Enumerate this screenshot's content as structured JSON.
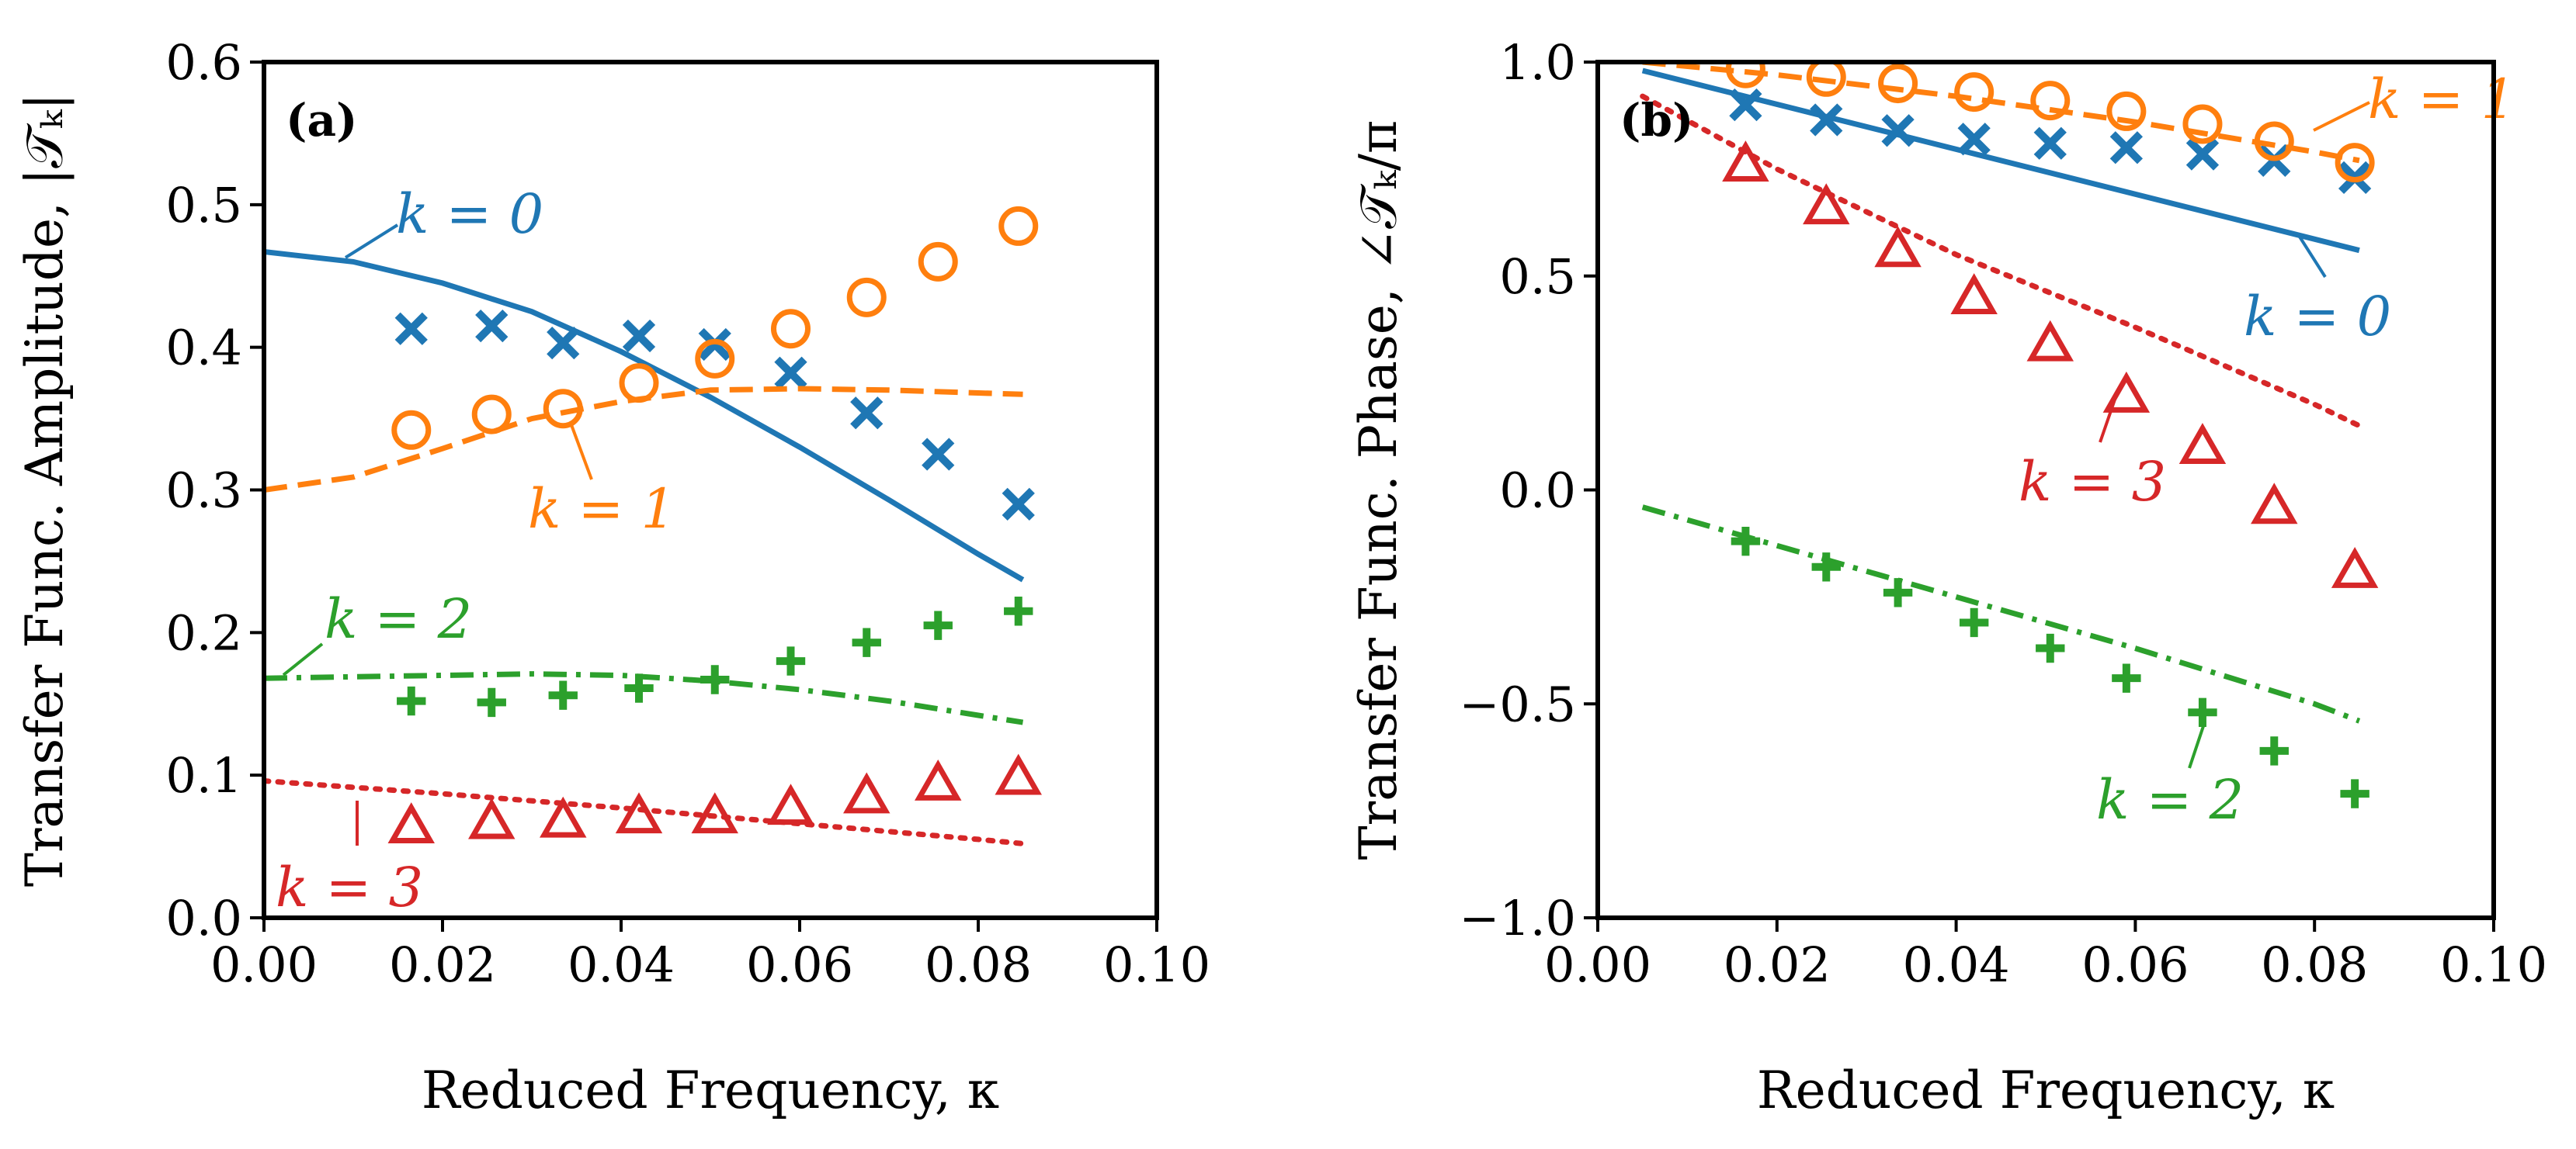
{
  "chart_data": [
    {
      "type": "line",
      "panel_label": "(a)",
      "xlabel": "Reduced Frequency, κ",
      "ylabel": "Transfer Func. Amplitude, |𝒯ₖ|",
      "xlim": [
        0,
        0.1
      ],
      "ylim": [
        0,
        0.6
      ],
      "xticks": [
        "0.00",
        "0.02",
        "0.04",
        "0.06",
        "0.08",
        "0.10"
      ],
      "yticks": [
        "0.0",
        "0.1",
        "0.2",
        "0.3",
        "0.4",
        "0.5",
        "0.6"
      ],
      "series": [
        {
          "name": "k = 0",
          "label": "k = 0",
          "color": "#1f77b4",
          "line_style": "solid",
          "marker": "x",
          "line_x": [
            0,
            0.01,
            0.02,
            0.03,
            0.04,
            0.05,
            0.06,
            0.07,
            0.08,
            0.085
          ],
          "line_y": [
            0.467,
            0.46,
            0.445,
            0.425,
            0.397,
            0.365,
            0.33,
            0.293,
            0.255,
            0.237
          ],
          "points_x": [
            0.0165,
            0.0255,
            0.0335,
            0.042,
            0.0505,
            0.059,
            0.0675,
            0.0755,
            0.0845
          ],
          "points_y": [
            0.413,
            0.415,
            0.403,
            0.408,
            0.402,
            0.382,
            0.354,
            0.325,
            0.29
          ]
        },
        {
          "name": "k = 1",
          "label": "k = 1",
          "color": "#ff7f0e",
          "line_style": "dashed",
          "marker": "o",
          "line_x": [
            0,
            0.01,
            0.02,
            0.03,
            0.04,
            0.05,
            0.06,
            0.07,
            0.08,
            0.085
          ],
          "line_y": [
            0.3,
            0.309,
            0.329,
            0.35,
            0.362,
            0.37,
            0.371,
            0.37,
            0.368,
            0.367
          ],
          "points_x": [
            0.0165,
            0.0255,
            0.0335,
            0.042,
            0.0505,
            0.059,
            0.0675,
            0.0755,
            0.0845
          ],
          "points_y": [
            0.342,
            0.353,
            0.357,
            0.375,
            0.392,
            0.413,
            0.435,
            0.46,
            0.485
          ]
        },
        {
          "name": "k = 2",
          "label": "k = 2",
          "color": "#2ca02c",
          "line_style": "dashdot",
          "marker": "+",
          "line_x": [
            0,
            0.02,
            0.03,
            0.04,
            0.05,
            0.06,
            0.07,
            0.08,
            0.085
          ],
          "line_y": [
            0.168,
            0.17,
            0.171,
            0.17,
            0.166,
            0.16,
            0.152,
            0.142,
            0.137
          ],
          "points_x": [
            0.0165,
            0.0255,
            0.0335,
            0.042,
            0.0505,
            0.059,
            0.0675,
            0.0755,
            0.0845
          ],
          "points_y": [
            0.152,
            0.151,
            0.156,
            0.161,
            0.167,
            0.18,
            0.193,
            0.205,
            0.215
          ]
        },
        {
          "name": "k = 3",
          "label": "k = 3",
          "color": "#d62728",
          "line_style": "dotted",
          "marker": "^",
          "line_x": [
            0,
            0.02,
            0.04,
            0.06,
            0.08,
            0.085
          ],
          "line_y": [
            0.096,
            0.087,
            0.077,
            0.066,
            0.055,
            0.052
          ],
          "points_x": [
            0.0165,
            0.0255,
            0.0335,
            0.042,
            0.0505,
            0.059,
            0.0675,
            0.0755,
            0.0845
          ],
          "points_y": [
            0.064,
            0.067,
            0.068,
            0.071,
            0.071,
            0.077,
            0.085,
            0.094,
            0.098
          ]
        }
      ]
    },
    {
      "type": "line",
      "panel_label": "(b)",
      "xlabel": "Reduced Frequency, κ",
      "ylabel": "Transfer Func. Phase, ∠𝒯ₖ/π",
      "xlim": [
        0,
        0.1
      ],
      "ylim": [
        -1.0,
        1.0
      ],
      "xticks": [
        "0.00",
        "0.02",
        "0.04",
        "0.06",
        "0.08",
        "0.10"
      ],
      "yticks": [
        "−1.0",
        "−0.5",
        "0.0",
        "0.5",
        "1.0"
      ],
      "series": [
        {
          "name": "k = 0",
          "label": "k = 0",
          "color": "#1f77b4",
          "line_style": "solid",
          "marker": "x",
          "line_x": [
            0.005,
            0.085
          ],
          "line_y": [
            0.98,
            0.56
          ],
          "points_x": [
            0.0165,
            0.0255,
            0.0335,
            0.042,
            0.0505,
            0.059,
            0.0675,
            0.0755,
            0.0845
          ],
          "points_y": [
            0.9,
            0.865,
            0.84,
            0.82,
            0.81,
            0.8,
            0.785,
            0.77,
            0.73
          ]
        },
        {
          "name": "k = 1",
          "label": "k = 1",
          "color": "#ff7f0e",
          "line_style": "dashed",
          "marker": "o",
          "line_x": [
            0.005,
            0.02,
            0.04,
            0.06,
            0.08,
            0.085
          ],
          "line_y": [
            1.0,
            0.97,
            0.92,
            0.86,
            0.79,
            0.77
          ],
          "points_x": [
            0.0165,
            0.0255,
            0.0335,
            0.042,
            0.0505,
            0.059,
            0.0675,
            0.0755,
            0.0845
          ],
          "points_y": [
            0.985,
            0.965,
            0.95,
            0.93,
            0.91,
            0.885,
            0.855,
            0.815,
            0.765
          ]
        },
        {
          "name": "k = 2",
          "label": "k = 2",
          "color": "#2ca02c",
          "line_style": "dashdot",
          "marker": "+",
          "line_x": [
            0.005,
            0.02,
            0.04,
            0.06,
            0.08,
            0.085
          ],
          "line_y": [
            -0.04,
            -0.13,
            -0.25,
            -0.37,
            -0.5,
            -0.54
          ],
          "points_x": [
            0.0165,
            0.0255,
            0.0335,
            0.042,
            0.0505,
            0.059,
            0.0675,
            0.0755,
            0.0845
          ],
          "points_y": [
            -0.12,
            -0.18,
            -0.24,
            -0.31,
            -0.37,
            -0.44,
            -0.52,
            -0.61,
            -0.71
          ]
        },
        {
          "name": "k = 3",
          "label": "k = 3",
          "color": "#d62728",
          "line_style": "dotted",
          "marker": "^",
          "line_x": [
            0.005,
            0.02,
            0.04,
            0.06,
            0.08,
            0.085
          ],
          "line_y": [
            0.92,
            0.75,
            0.55,
            0.38,
            0.2,
            0.15
          ],
          "points_x": [
            0.0165,
            0.0255,
            0.0335,
            0.042,
            0.0505,
            0.059,
            0.0675,
            0.0755,
            0.0845
          ],
          "points_y": [
            0.76,
            0.66,
            0.56,
            0.45,
            0.34,
            0.22,
            0.1,
            -0.04,
            -0.19
          ]
        }
      ]
    }
  ]
}
